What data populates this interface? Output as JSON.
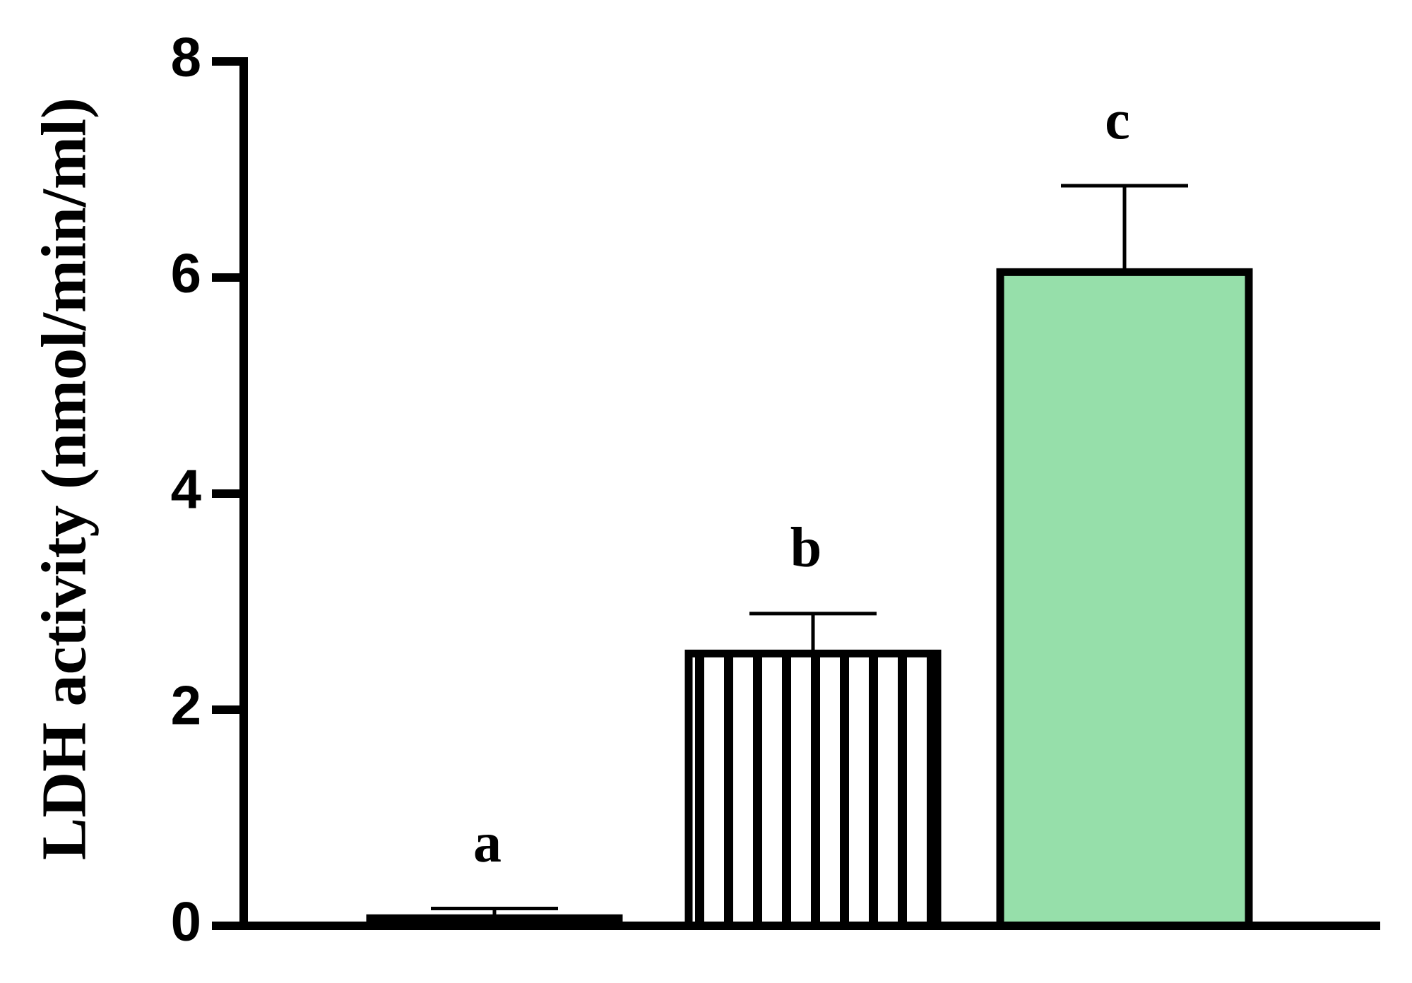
{
  "chart_data": {
    "type": "bar",
    "y_label": "LDH activity (nmol/min/ml)",
    "categories": [
      null,
      null,
      null
    ],
    "values": [
      0.07,
      2.52,
      6.05
    ],
    "errors": [
      0.09,
      0.37,
      0.8
    ],
    "annotations": [
      "a",
      "b",
      "c"
    ],
    "colors": [
      "#ffffff",
      "#ffffff",
      "#96dfaa"
    ],
    "patterns": [
      "none",
      "vertical",
      "none"
    ],
    "ylim": [
      0,
      8
    ],
    "yticks": [
      0,
      2,
      4,
      6,
      8
    ],
    "grid": false
  }
}
